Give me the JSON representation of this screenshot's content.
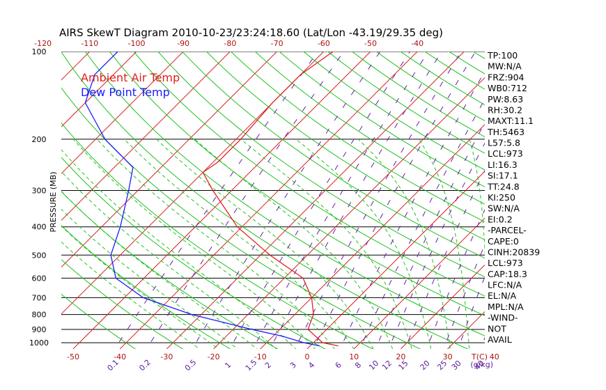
{
  "chart_data": {
    "type": "line",
    "title": "AIRS SkewT Diagram 2010-10-23/23:24:18.60 (Lat/Lon -43.19/29.35 deg)",
    "ylabel": "PRESSURE (MB)",
    "y_scale": "log",
    "ylim": [
      1050,
      100
    ],
    "pressure_levels": [
      {
        "value": 100,
        "label": "100"
      },
      {
        "value": 200,
        "label": "200"
      },
      {
        "value": 300,
        "label": "300"
      },
      {
        "value": 400,
        "label": "400"
      },
      {
        "value": 500,
        "label": "500"
      },
      {
        "value": 600,
        "label": "600"
      },
      {
        "value": 700,
        "label": "700"
      },
      {
        "value": 800,
        "label": "800"
      },
      {
        "value": 900,
        "label": "900"
      },
      {
        "value": 1000,
        "label": "1000"
      }
    ],
    "top_temperature_ticks": [
      "-120",
      "-110",
      "-100",
      "-90",
      "-80",
      "-70",
      "-60",
      "-50",
      "-40"
    ],
    "bottom_temperature_ticks": [
      "-50",
      "-40",
      "-30",
      "-20",
      "-10",
      "0",
      "10",
      "20",
      "30",
      "40"
    ],
    "temperature_unit_label": "T(C)",
    "mixing_ratio_ticks": [
      "0.1",
      "0.2",
      "0.5",
      "1",
      "1.5",
      "2",
      "3",
      "4",
      "6",
      "8",
      "10",
      "12",
      "15",
      "20",
      "25",
      "30",
      "40"
    ],
    "mixing_ratio_unit_label": "(g/kg)",
    "legend": [
      {
        "name": "Ambient Air Temp",
        "color": "#e02020"
      },
      {
        "name": "Dew Point Temp",
        "color": "#1a1aff"
      }
    ],
    "series": [
      {
        "name": "Ambient Air Temp",
        "color": "#e02020",
        "points": [
          {
            "p": 1025,
            "t": 6.0
          },
          {
            "p": 1000,
            "t": 2.0
          },
          {
            "p": 900,
            "t": -4.0
          },
          {
            "p": 800,
            "t": -6.0
          },
          {
            "p": 700,
            "t": -10.0
          },
          {
            "p": 600,
            "t": -16.0
          },
          {
            "p": 500,
            "t": -28.0
          },
          {
            "p": 400,
            "t": -41.0
          },
          {
            "p": 300,
            "t": -54.0
          },
          {
            "p": 260,
            "t": -60.0
          },
          {
            "p": 240,
            "t": -59.0
          },
          {
            "p": 200,
            "t": -59.0
          },
          {
            "p": 150,
            "t": -60.0
          },
          {
            "p": 120,
            "t": -60.0
          },
          {
            "p": 100,
            "t": -58.0
          }
        ]
      },
      {
        "name": "Dew Point Temp",
        "color": "#1a1aff",
        "points": [
          {
            "p": 1025,
            "t": 2.0
          },
          {
            "p": 1000,
            "t": -2.0
          },
          {
            "p": 950,
            "t": -8.0
          },
          {
            "p": 900,
            "t": -16.0
          },
          {
            "p": 800,
            "t": -32.0
          },
          {
            "p": 700,
            "t": -46.0
          },
          {
            "p": 600,
            "t": -56.0
          },
          {
            "p": 500,
            "t": -62.0
          },
          {
            "p": 400,
            "t": -66.0
          },
          {
            "p": 300,
            "t": -72.0
          },
          {
            "p": 250,
            "t": -76.0
          },
          {
            "p": 200,
            "t": -88.0
          },
          {
            "p": 150,
            "t": -100.0
          },
          {
            "p": 120,
            "t": -104.0
          },
          {
            "p": 100,
            "t": -104.0
          }
        ]
      }
    ],
    "indices": [
      "TP:100",
      "MW:N/A",
      "FRZ:904",
      "WB0:712",
      "PW:8.63",
      "RH:30.2",
      "MAXT:11.1",
      "TH:5463",
      "L57:5.8",
      "LCL:973",
      "LI:16.3",
      "SI:17.1",
      "TT:24.8",
      "KI:250",
      "SW:N/A",
      "EI:0.2",
      "-PARCEL-",
      "CAPE:0",
      "CINH:20839",
      "LCL:973",
      "CAP:18.3",
      "LFC:N/A",
      "EL:N/A",
      "MPL:N/A",
      "-WIND-",
      "NOT",
      "AVAIL"
    ],
    "colors": {
      "isotherm": "#d42020",
      "dry_adiabat": "#20c020",
      "moist_adiabat": "#20c020",
      "mixing_ratio": "#6a1aa8",
      "isobar": "#000000",
      "temperature": "#e02020",
      "dewpoint": "#1a1aff",
      "bottom_tick_text": "#b01010",
      "mixing_tick_text": "#5a1a9a"
    }
  }
}
